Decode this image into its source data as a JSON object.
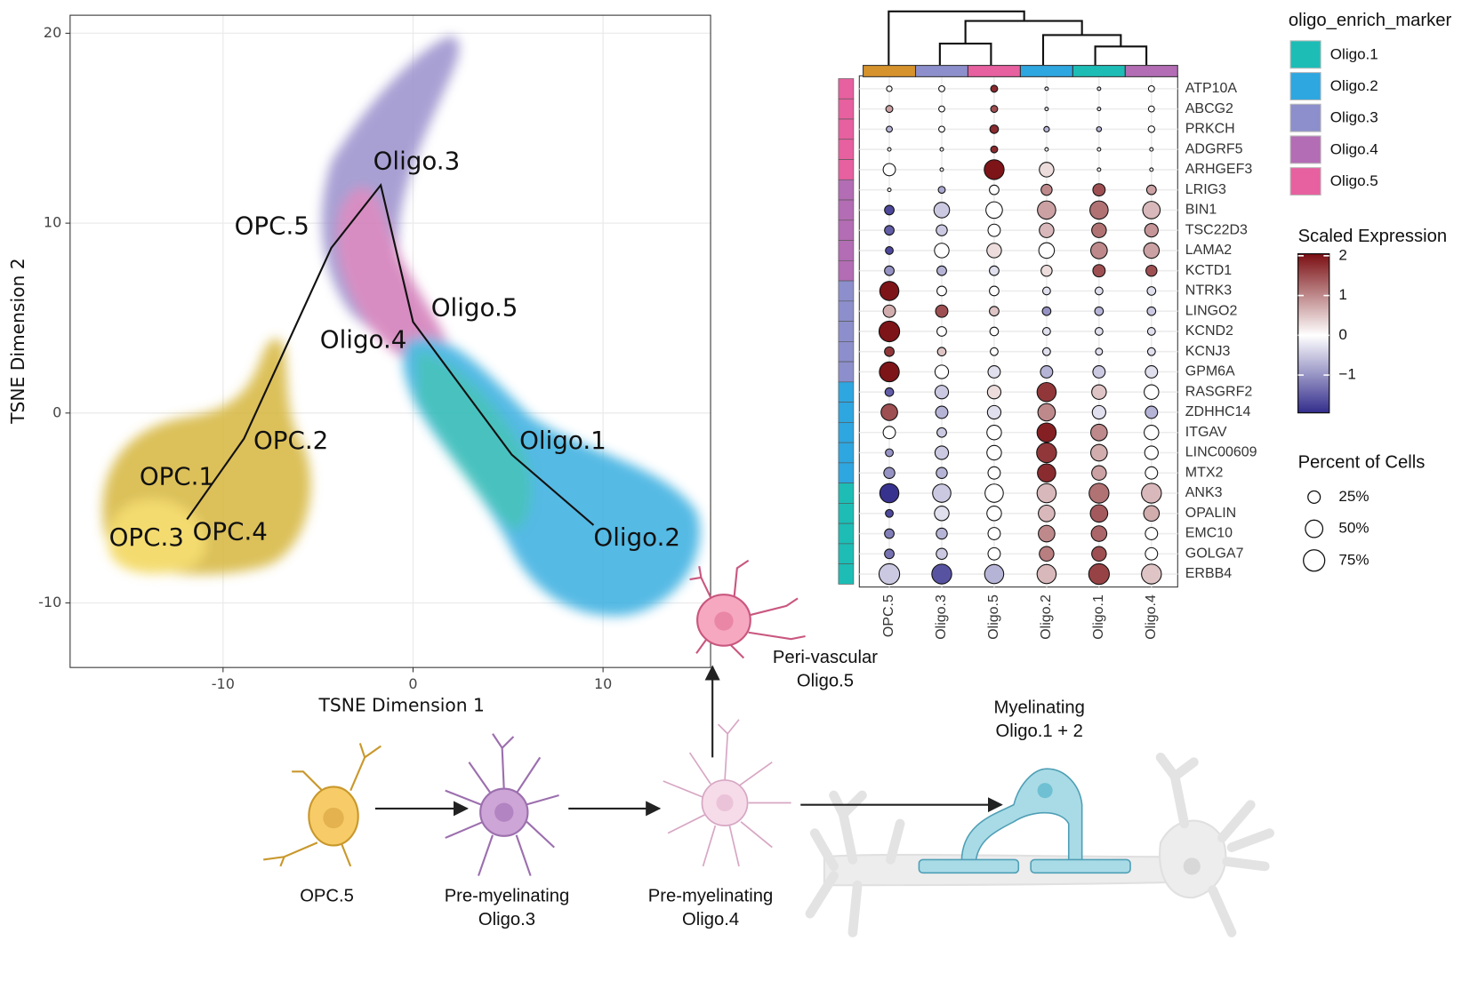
{
  "chart_data": [
    {
      "type": "scatter",
      "xlabel": "TSNE Dimension 1",
      "ylabel": "TSNE Dimension 2",
      "xlim": [
        -18.05,
        15.66
      ],
      "ylim": [
        -13.4,
        20.95
      ],
      "xticks": [
        -10,
        0,
        10
      ],
      "yticks": [
        -10,
        0,
        10,
        20
      ],
      "grid": true,
      "series": [
        {
          "color": "#111111",
          "x": [
            -11.9,
            -8.9,
            -4.3,
            -1.7,
            0,
            5.2,
            9.5
          ],
          "values": [
            -5.6,
            -1.35,
            8.7,
            12.0,
            4.8,
            -2.2,
            -5.9
          ]
        }
      ],
      "annotations": [
        {
          "text": "Oligo.3",
          "x": -2.1,
          "y": 13.2
        },
        {
          "text": "OPC.5",
          "x": -9.4,
          "y": 9.8
        },
        {
          "text": "Oligo.5",
          "x": 0.95,
          "y": 5.5
        },
        {
          "text": "Oligo.4",
          "x": -4.9,
          "y": 3.8
        },
        {
          "text": "OPC.2",
          "x": -8.4,
          "y": -1.5
        },
        {
          "text": "Oligo.1",
          "x": 5.6,
          "y": -1.5
        },
        {
          "text": "OPC.1",
          "x": -14.4,
          "y": -3.4
        },
        {
          "text": "OPC.3",
          "x": -16.0,
          "y": -6.6
        },
        {
          "text": "OPC.4",
          "x": -11.6,
          "y": -6.3
        },
        {
          "text": "Oligo.2",
          "x": 9.5,
          "y": -6.6
        }
      ]
    },
    {
      "type": "dotplot",
      "groups": [
        "OPC.5",
        "Oligo.3",
        "Oligo.5",
        "Oligo.2",
        "Oligo.1",
        "Oligo.4"
      ],
      "group_colors": [
        "#d6922c",
        "#8c8fcb",
        "#e7609f",
        "#2ea6e0",
        "#1dbdb6",
        "#b36db4"
      ],
      "genes": [
        "ATP10A",
        "ABCG2",
        "PRKCH",
        "ADGRF5",
        "ARHGEF3",
        "LRIG3",
        "BIN1",
        "TSC22D3",
        "LAMA2",
        "KCTD1",
        "NTRK3",
        "LINGO2",
        "KCND2",
        "KCNJ3",
        "GPM6A",
        "RASGRF2",
        "ZDHHC14",
        "ITGAV",
        "LINC00609",
        "MTX2",
        "ANK3",
        "OPALIN",
        "EMC10",
        "GOLGA7",
        "ERBB4"
      ],
      "gene_groups": [
        "Oligo.5",
        "Oligo.5",
        "Oligo.5",
        "Oligo.5",
        "Oligo.5",
        "Oligo.4",
        "Oligo.4",
        "Oligo.4",
        "Oligo.4",
        "Oligo.4",
        "Oligo.3",
        "Oligo.3",
        "Oligo.3",
        "Oligo.3",
        "Oligo.3",
        "Oligo.2",
        "Oligo.2",
        "Oligo.2",
        "Oligo.2",
        "Oligo.2",
        "Oligo.1",
        "Oligo.1",
        "Oligo.1",
        "Oligo.1",
        "Oligo.1"
      ],
      "percent": [
        [
          5,
          6,
          8,
          2,
          2,
          6
        ],
        [
          8,
          6,
          8,
          2,
          2,
          6
        ],
        [
          6,
          6,
          12,
          5,
          4,
          7
        ],
        [
          2,
          2,
          8,
          2,
          2,
          2
        ],
        [
          25,
          2,
          65,
          35,
          2,
          2
        ],
        [
          2,
          8,
          15,
          20,
          25,
          15
        ],
        [
          15,
          40,
          45,
          55,
          55,
          50
        ],
        [
          15,
          20,
          25,
          35,
          35,
          30
        ],
        [
          10,
          35,
          35,
          40,
          45,
          40
        ],
        [
          15,
          15,
          15,
          20,
          25,
          20
        ],
        [
          60,
          15,
          15,
          10,
          10,
          12
        ],
        [
          25,
          25,
          15,
          12,
          12,
          12
        ],
        [
          70,
          15,
          12,
          10,
          10,
          10
        ],
        [
          15,
          12,
          10,
          10,
          8,
          10
        ],
        [
          65,
          30,
          25,
          25,
          25,
          25
        ],
        [
          12,
          30,
          30,
          60,
          35,
          35
        ],
        [
          45,
          25,
          30,
          50,
          30,
          25
        ],
        [
          25,
          15,
          35,
          60,
          45,
          35
        ],
        [
          10,
          30,
          35,
          65,
          45,
          30
        ],
        [
          20,
          20,
          25,
          55,
          35,
          25
        ],
        [
          60,
          55,
          55,
          60,
          65,
          65
        ],
        [
          10,
          35,
          35,
          45,
          50,
          40
        ],
        [
          15,
          20,
          25,
          45,
          40,
          25
        ],
        [
          15,
          20,
          25,
          35,
          35,
          25
        ],
        [
          70,
          65,
          60,
          60,
          70,
          65
        ]
      ],
      "expression": [
        [
          0,
          0,
          1.8,
          -0.3,
          -0.3,
          0
        ],
        [
          0.8,
          0,
          1.5,
          -0.3,
          -0.3,
          0
        ],
        [
          -0.7,
          0,
          1.8,
          -0.7,
          -0.7,
          0
        ],
        [
          0,
          0,
          1.8,
          0,
          0,
          0
        ],
        [
          0,
          0,
          2,
          0.3,
          0,
          0
        ],
        [
          0,
          -0.8,
          0,
          1,
          1.5,
          0.8
        ],
        [
          -1.7,
          -0.5,
          0,
          0.8,
          1.2,
          0.6
        ],
        [
          -1.5,
          -0.5,
          0,
          0.6,
          1.2,
          0.9
        ],
        [
          -1.7,
          0,
          0.3,
          0,
          1.0,
          0.8
        ],
        [
          -1,
          -0.7,
          -0.3,
          0.3,
          1.5,
          1.5
        ],
        [
          2,
          0,
          0,
          -0.3,
          -0.3,
          -0.3
        ],
        [
          0.7,
          1.5,
          0.5,
          -1,
          -0.7,
          -0.5
        ],
        [
          2,
          0,
          0,
          -0.3,
          -0.3,
          -0.3
        ],
        [
          1.7,
          0.5,
          0,
          -0.3,
          -0.3,
          -0.3
        ],
        [
          2,
          0,
          -0.3,
          -0.7,
          -0.5,
          -0.3
        ],
        [
          -1.5,
          -0.5,
          0.3,
          1.7,
          0.5,
          0
        ],
        [
          1.5,
          -0.7,
          -0.3,
          1,
          -0.3,
          -0.7
        ],
        [
          0,
          -0.5,
          0,
          1.9,
          1,
          0
        ],
        [
          -1,
          -0.5,
          0,
          1.7,
          0.7,
          0
        ],
        [
          -1,
          -0.7,
          0,
          1.8,
          0.8,
          0
        ],
        [
          -1.9,
          -0.5,
          0,
          0.6,
          1.2,
          0.6
        ],
        [
          -1.7,
          -0.3,
          0,
          0.6,
          1.4,
          0.7
        ],
        [
          -1.2,
          -0.7,
          0,
          1,
          1.3,
          0
        ],
        [
          -1.3,
          -0.5,
          0,
          1.1,
          1.5,
          0
        ],
        [
          -0.5,
          -1.6,
          -0.7,
          0.6,
          1.6,
          0.5
        ]
      ],
      "legend_title": "oligo_enrich_marker",
      "legend": [
        {
          "name": "Oligo.1",
          "color": "#1dbdb6"
        },
        {
          "name": "Oligo.2",
          "color": "#2ea6e0"
        },
        {
          "name": "Oligo.3",
          "color": "#8c8fcb"
        },
        {
          "name": "Oligo.4",
          "color": "#b36db4"
        },
        {
          "name": "Oligo.5",
          "color": "#e7609f"
        }
      ],
      "color_title": "Scaled Expression",
      "colorlim": [
        -1.95,
        2.05
      ],
      "colorticks": [
        2,
        1,
        0,
        {
          "value": -1,
          "label": "−1"
        }
      ],
      "colors": [
        "#332d8c",
        "#ffffff",
        "#7a0e12"
      ],
      "size_title": "Percent of Cells",
      "size_ticks": [
        {
          "value": 25,
          "label": "25%"
        },
        {
          "value": 50,
          "label": "50%"
        },
        {
          "value": 75,
          "label": "75%"
        }
      ]
    }
  ],
  "diagram": {
    "stages": [
      [
        "OPC.5"
      ],
      [
        "Pre-myelinating",
        "Oligo.3"
      ],
      [
        "Pre-myelinating",
        "Oligo.4"
      ],
      [
        "Peri-vascular",
        "Oligo.5"
      ],
      [
        "Myelinating",
        "Oligo.1 + 2"
      ]
    ]
  }
}
